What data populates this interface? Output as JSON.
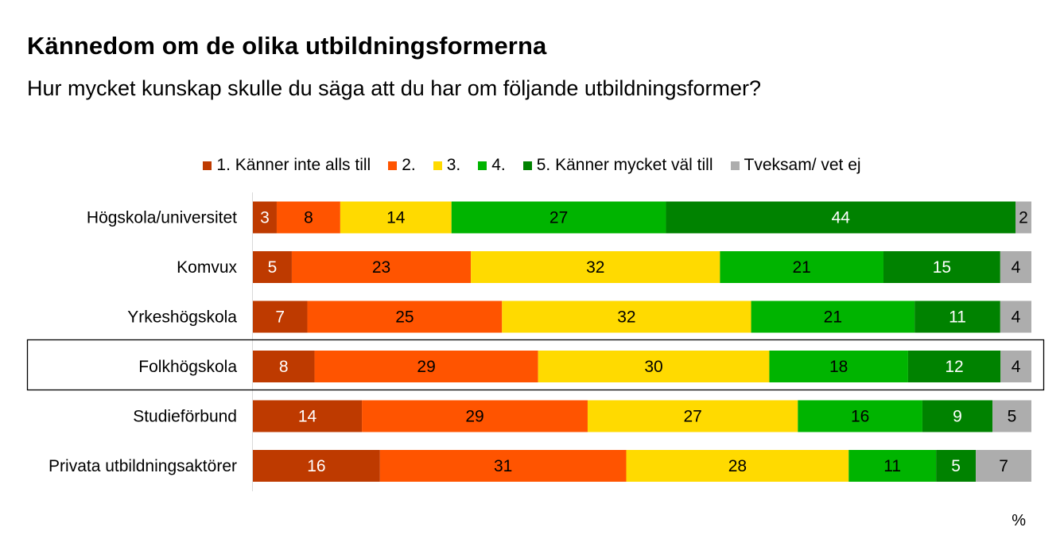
{
  "header": {
    "title": "Kännedom om de olika utbildningsformerna",
    "subtitle": "Hur mycket kunskap skulle du säga att du har om följande utbildningsformer?"
  },
  "unit_label": "%",
  "highlighted_category": "Folkhögskola",
  "chart_data": {
    "type": "bar",
    "orientation": "horizontal",
    "stacked": true,
    "percent_stacked": true,
    "title": "Kännedom om de olika utbildningsformerna",
    "subtitle": "Hur mycket kunskap skulle du säga att du har om följande utbildningsformer?",
    "legend_position": "top",
    "xlim": [
      0,
      100
    ],
    "categories": [
      "Högskola/universitet",
      "Komvux",
      "Yrkeshögskola",
      "Folkhögskola",
      "Studieförbund",
      "Privata utbildningsaktörer"
    ],
    "series": [
      {
        "name": "1. Känner inte alls till",
        "color": "#BE3A00",
        "label_color": "#ffffff",
        "values": [
          3,
          5,
          7,
          8,
          14,
          16
        ]
      },
      {
        "name": "2.",
        "color": "#FF5400",
        "label_color": "#000000",
        "values": [
          8,
          23,
          25,
          29,
          29,
          31
        ]
      },
      {
        "name": "3.",
        "color": "#FFDA00",
        "label_color": "#000000",
        "values": [
          14,
          32,
          32,
          30,
          27,
          28
        ]
      },
      {
        "name": "4.",
        "color": "#00B400",
        "label_color": "#000000",
        "values": [
          27,
          21,
          21,
          18,
          16,
          11
        ]
      },
      {
        "name": "5. Känner mycket väl till",
        "color": "#008200",
        "label_color": "#ffffff",
        "values": [
          44,
          15,
          11,
          12,
          9,
          5
        ]
      },
      {
        "name": "Tveksam/ vet ej",
        "color": "#ADADAD",
        "label_color": "#000000",
        "values": [
          2,
          4,
          4,
          4,
          5,
          7
        ]
      }
    ]
  }
}
